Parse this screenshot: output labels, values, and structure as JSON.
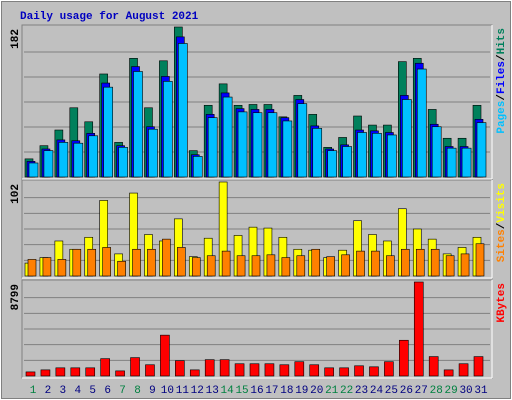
{
  "chart_data": [
    {
      "type": "bar",
      "title": "Daily usage for August 2021",
      "legend_separator": "/",
      "ylim": [
        0,
        182
      ],
      "yticks": [
        182
      ],
      "grid": true,
      "grid_divisions": 6,
      "series": [
        {
          "name": "Hits",
          "color": "#00805c",
          "values": [
            22,
            38,
            57,
            84,
            67,
            125,
            42,
            144,
            84,
            141,
            182,
            32,
            87,
            113,
            87,
            88,
            88,
            73,
            99,
            76,
            36,
            48,
            74,
            63,
            63,
            140,
            144,
            82,
            47,
            47,
            87
          ]
        },
        {
          "name": "Files",
          "color": "#0000ff",
          "values": [
            19,
            34,
            45,
            44,
            53,
            114,
            38,
            134,
            61,
            122,
            170,
            27,
            76,
            102,
            83,
            82,
            82,
            72,
            94,
            62,
            34,
            39,
            57,
            56,
            54,
            99,
            138,
            64,
            37,
            37,
            70
          ]
        },
        {
          "name": "Pages",
          "color": "#00c0ff",
          "values": [
            17,
            32,
            42,
            41,
            50,
            109,
            36,
            128,
            58,
            116,
            162,
            25,
            72,
            97,
            79,
            78,
            78,
            68,
            89,
            59,
            32,
            37,
            54,
            53,
            51,
            94,
            131,
            61,
            35,
            35,
            66
          ]
        }
      ]
    },
    {
      "type": "bar",
      "legend_separator": "/",
      "ylim": [
        0,
        102
      ],
      "yticks": [
        102
      ],
      "grid": true,
      "grid_divisions": 6,
      "series": [
        {
          "name": "Visits",
          "color": "#ffff00",
          "values": [
            14,
            20,
            38,
            29,
            42,
            82,
            24,
            90,
            45,
            38,
            62,
            21,
            41,
            102,
            44,
            53,
            52,
            42,
            29,
            28,
            20,
            28,
            60,
            45,
            38,
            73,
            51,
            40,
            24,
            31,
            42
          ]
        },
        {
          "name": "Sites",
          "color": "#ff8000",
          "values": [
            18,
            20,
            18,
            29,
            29,
            31,
            16,
            29,
            29,
            40,
            31,
            20,
            22,
            27,
            22,
            22,
            23,
            20,
            22,
            29,
            21,
            23,
            27,
            27,
            22,
            29,
            29,
            29,
            22,
            24,
            35
          ]
        }
      ]
    },
    {
      "type": "bar",
      "ylim": [
        0,
        8799
      ],
      "yticks": [
        8799
      ],
      "grid": true,
      "grid_divisions": 6,
      "categories": [
        "1",
        "2",
        "3",
        "4",
        "5",
        "6",
        "7",
        "8",
        "9",
        "10",
        "11",
        "12",
        "13",
        "14",
        "15",
        "16",
        "17",
        "18",
        "19",
        "20",
        "21",
        "22",
        "23",
        "24",
        "25",
        "26",
        "27",
        "28",
        "29",
        "30",
        "31"
      ],
      "category_colors": [
        "#008040",
        "#000080",
        "#000080",
        "#000080",
        "#000080",
        "#000080",
        "#008040",
        "#008040",
        "#000080",
        "#000080",
        "#000080",
        "#000080",
        "#000080",
        "#008040",
        "#008040",
        "#000080",
        "#000080",
        "#000080",
        "#000080",
        "#000080",
        "#008040",
        "#008040",
        "#000080",
        "#000080",
        "#000080",
        "#000080",
        "#000080",
        "#008040",
        "#008040",
        "#000080",
        "#000080"
      ],
      "series": [
        {
          "name": "KBytes",
          "color": "#ff0000",
          "values": [
            382,
            574,
            765,
            765,
            765,
            1625,
            478,
            1721,
            1052,
            3824,
            1434,
            574,
            1530,
            1530,
            1147,
            1147,
            1147,
            1052,
            1338,
            1052,
            765,
            765,
            956,
            860,
            1338,
            3346,
            8799,
            1816,
            574,
            1147,
            1816
          ]
        }
      ]
    }
  ]
}
